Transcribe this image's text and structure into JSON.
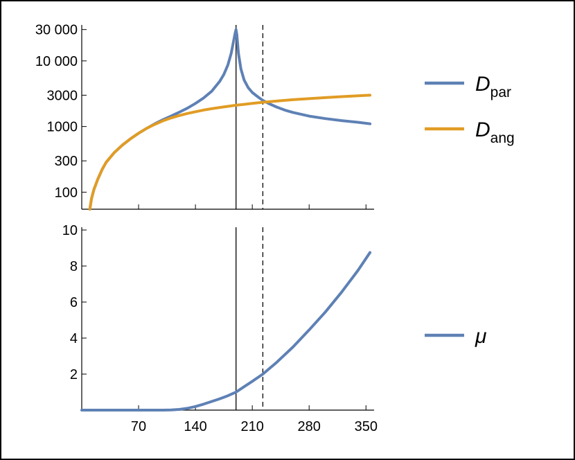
{
  "chart_data": [
    {
      "type": "line",
      "yscale": "log",
      "xlim": [
        0,
        360
      ],
      "ylim": [
        55,
        32000
      ],
      "y_ticks": [
        {
          "value": 100,
          "label": "100"
        },
        {
          "value": 300,
          "label": "300"
        },
        {
          "value": 1000,
          "label": "1000"
        },
        {
          "value": 3000,
          "label": "3000"
        },
        {
          "value": 10000,
          "label": "10 000"
        },
        {
          "value": 30000,
          "label": "30 000"
        }
      ],
      "vlines": [
        {
          "x": 190,
          "style": "solid"
        },
        {
          "x": 223,
          "style": "dashed"
        }
      ],
      "series": [
        {
          "name_main": "D",
          "name_sub": "par",
          "color": "#5E81B5",
          "x": [
            10,
            12,
            15,
            20,
            25,
            30,
            40,
            50,
            60,
            70,
            80,
            90,
            100,
            110,
            120,
            130,
            140,
            150,
            160,
            170,
            175,
            180,
            184,
            187,
            189,
            190,
            191,
            193,
            196,
            200,
            205,
            210,
            215,
            220,
            223,
            230,
            240,
            250,
            260,
            280,
            300,
            320,
            340,
            355
          ],
          "y": [
            55,
            80,
            110,
            160,
            220,
            285,
            400,
            520,
            650,
            790,
            940,
            1100,
            1270,
            1440,
            1650,
            1900,
            2250,
            2720,
            3450,
            4900,
            6200,
            8700,
            13000,
            20000,
            27000,
            30000,
            25000,
            13000,
            7500,
            5100,
            3900,
            3300,
            2950,
            2650,
            2500,
            2250,
            1980,
            1780,
            1640,
            1440,
            1320,
            1230,
            1160,
            1100
          ]
        },
        {
          "name_main": "D",
          "name_sub": "ang",
          "color": "#E19C24",
          "x": [
            10,
            12,
            15,
            20,
            25,
            30,
            40,
            50,
            60,
            70,
            80,
            90,
            100,
            110,
            120,
            130,
            140,
            150,
            160,
            170,
            180,
            190,
            200,
            210,
            223,
            240,
            260,
            280,
            300,
            320,
            340,
            355
          ],
          "y": [
            55,
            80,
            110,
            160,
            220,
            285,
            400,
            520,
            650,
            790,
            940,
            1080,
            1220,
            1350,
            1470,
            1580,
            1680,
            1780,
            1870,
            1950,
            2030,
            2110,
            2180,
            2250,
            2340,
            2440,
            2560,
            2660,
            2760,
            2850,
            2940,
            3000
          ]
        }
      ]
    },
    {
      "type": "line",
      "xlim": [
        0,
        360
      ],
      "ylim": [
        0,
        10
      ],
      "x_ticks": [
        {
          "value": 70,
          "label": "70"
        },
        {
          "value": 140,
          "label": "140"
        },
        {
          "value": 210,
          "label": "210"
        },
        {
          "value": 280,
          "label": "280"
        },
        {
          "value": 350,
          "label": "350"
        }
      ],
      "y_ticks": [
        {
          "value": 2,
          "label": "2"
        },
        {
          "value": 4,
          "label": "4"
        },
        {
          "value": 6,
          "label": "6"
        },
        {
          "value": 8,
          "label": "8"
        },
        {
          "value": 10,
          "label": "10"
        }
      ],
      "vlines": [
        {
          "x": 190,
          "style": "solid"
        },
        {
          "x": 223,
          "style": "dashed"
        }
      ],
      "series": [
        {
          "name_main": "μ",
          "name_sub": "",
          "color": "#5E81B5",
          "x": [
            0,
            20,
            40,
            60,
            80,
            100,
            110,
            120,
            130,
            140,
            150,
            160,
            170,
            180,
            190,
            200,
            210,
            223,
            240,
            260,
            280,
            300,
            320,
            340,
            355
          ],
          "y": [
            0,
            0,
            0,
            0,
            0,
            0,
            0.01,
            0.04,
            0.1,
            0.2,
            0.33,
            0.48,
            0.63,
            0.8,
            1.0,
            1.3,
            1.6,
            2.0,
            2.65,
            3.5,
            4.45,
            5.45,
            6.55,
            7.75,
            8.75
          ]
        }
      ]
    }
  ]
}
